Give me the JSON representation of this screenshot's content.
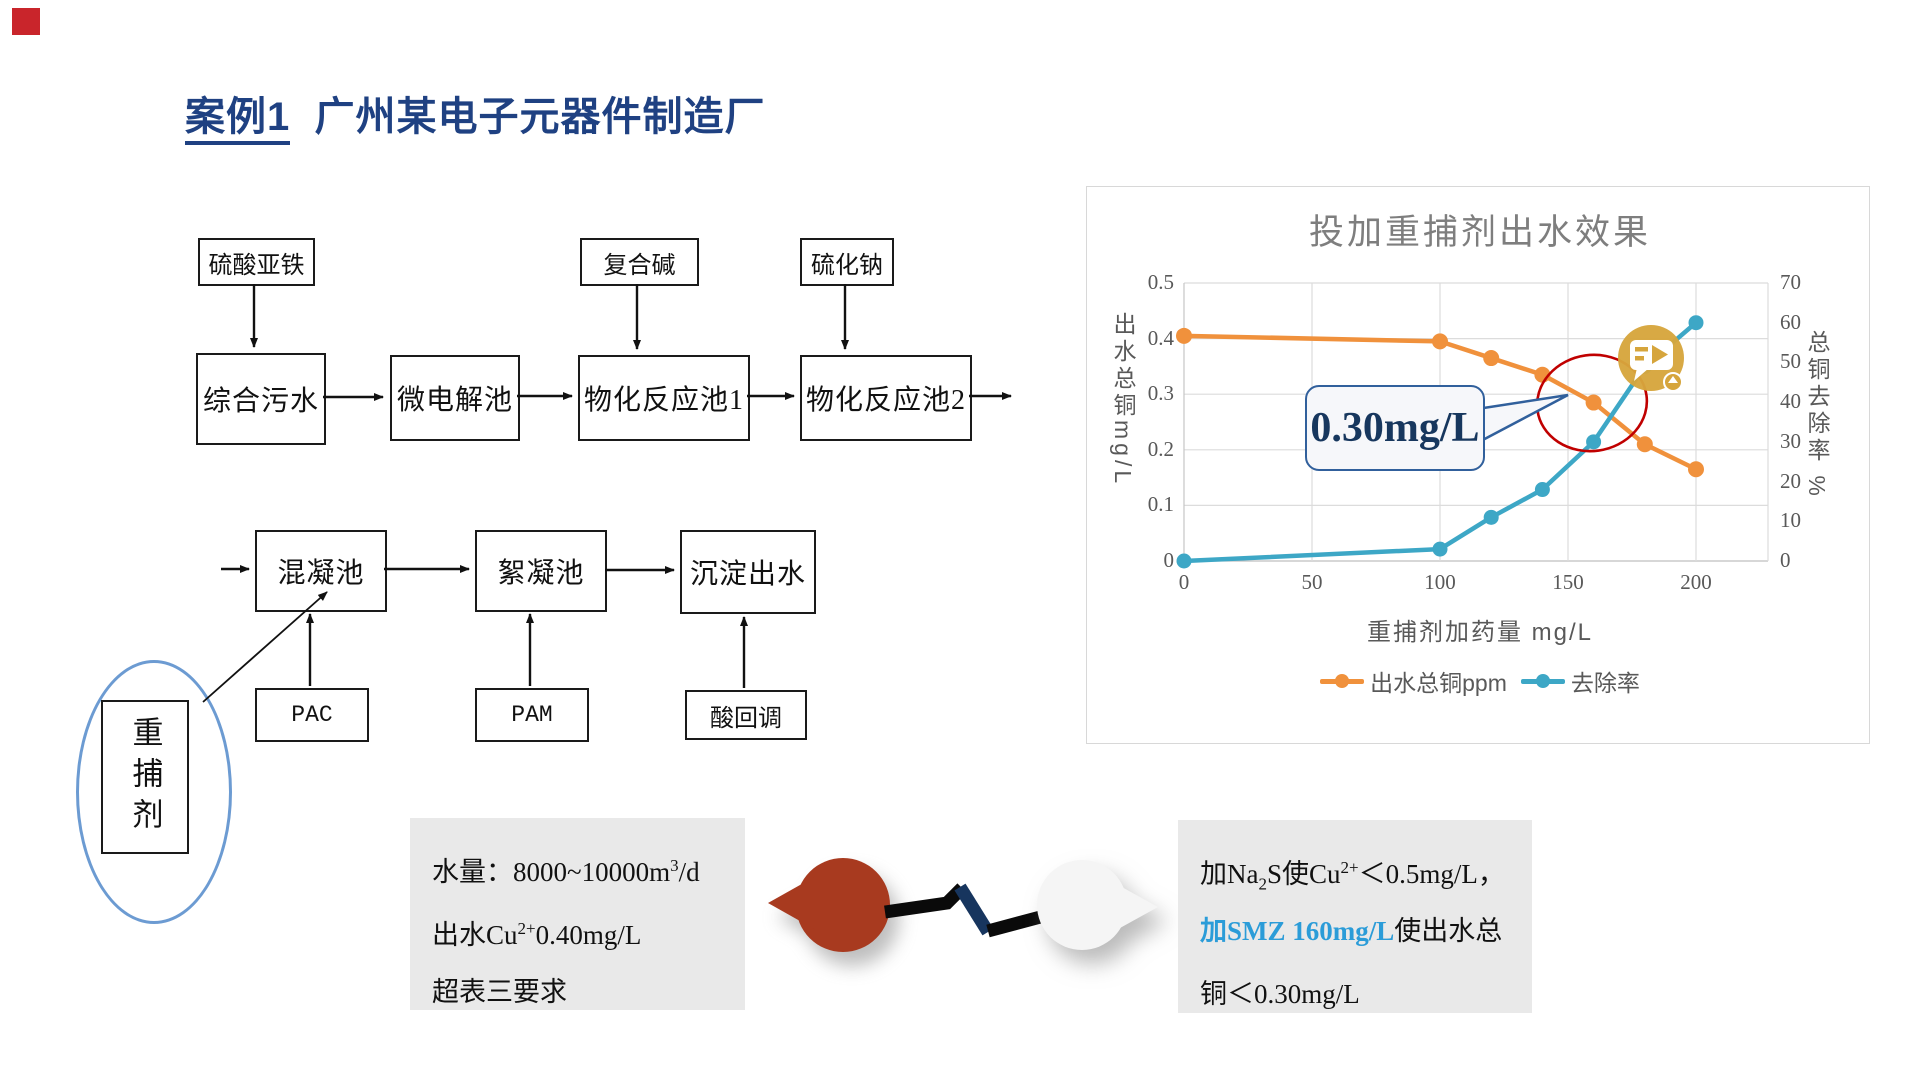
{
  "slide": {
    "title_underlined": "案例1",
    "title_rest": "广州某电子元器件制造厂"
  },
  "flow_top": {
    "reagents": [
      {
        "label": "硫酸亚铁"
      },
      {
        "label": "复合碱"
      },
      {
        "label": "硫化钠"
      }
    ],
    "tanks": [
      {
        "label": "综合污水"
      },
      {
        "label": "微电解池"
      },
      {
        "label": "物化反应池1"
      },
      {
        "label": "物化反应池2"
      }
    ]
  },
  "flow_bottom": {
    "tanks": [
      {
        "label": "混凝池"
      },
      {
        "label": "絮凝池"
      },
      {
        "label": "沉淀出水"
      }
    ],
    "reagents": [
      {
        "label": "PAC"
      },
      {
        "label": "PAM"
      },
      {
        "label": "酸回调"
      }
    ],
    "capture_agent_label": "重捕剂"
  },
  "chart_data": {
    "type": "line",
    "title": "投加重捕剂出水效果",
    "xlabel": "重捕剂加药量 mg/L",
    "ylabel_left": "出水总铜mg/L",
    "ylabel_right": "总铜去除率 %",
    "x": [
      0,
      100,
      120,
      140,
      160,
      180,
      200
    ],
    "series": [
      {
        "name": "出水总铜ppm",
        "axis": "left",
        "color": "#f0913c",
        "values": [
          0.405,
          0.395,
          0.365,
          0.335,
          0.285,
          0.21,
          0.165
        ]
      },
      {
        "name": "去除率",
        "axis": "right",
        "color": "#3da7c6",
        "values": [
          0,
          3,
          11,
          18,
          30,
          49,
          60
        ]
      }
    ],
    "xlim": [
      0,
      228
    ],
    "ylim_left": [
      0,
      0.5
    ],
    "ylim_right": [
      0,
      70
    ],
    "x_ticks": [
      0,
      50,
      100,
      150,
      200
    ],
    "left_ticks": [
      "0.5",
      "0.4",
      "0.3",
      "0.2",
      "0.1",
      "0"
    ],
    "right_ticks": [
      "70",
      "60",
      "50",
      "40",
      "30",
      "20",
      "10",
      "0"
    ],
    "grid": true,
    "legend_position": "bottom",
    "annotation": {
      "callout_text": "0.30mg/L"
    }
  },
  "notes_left": {
    "lines": [
      [
        {
          "t": "水量：8000~10000m"
        },
        {
          "t": "3",
          "sup": true
        },
        {
          "t": "/d"
        }
      ],
      [
        {
          "t": "出水Cu"
        },
        {
          "t": "2+",
          "sup": true
        },
        {
          "t": "0.40mg/L"
        }
      ],
      [
        {
          "t": "超表三要求"
        }
      ]
    ]
  },
  "notes_right": {
    "lines": [
      [
        {
          "t": "加Na"
        },
        {
          "t": "2",
          "sub": true
        },
        {
          "t": "S使Cu"
        },
        {
          "t": "2+",
          "sup": true
        },
        {
          "t": "＜0.5mg/L，"
        }
      ],
      [
        {
          "t": "加SMZ 160mg/L",
          "accent": true
        },
        {
          "t": "使出水总"
        }
      ],
      [
        {
          "t": "铜＜0.30mg/L"
        }
      ]
    ]
  },
  "colors": {
    "accent_blue": "#2b9cd8",
    "title_navy": "#1f4182",
    "callout_navy": "#17375e",
    "annotation_red": "#c00000",
    "gold_icon": "#d6a53c",
    "teardrop_red": "#a83a1f",
    "teardrop_white": "#f5f5f5",
    "note_bg": "#e9e9e9"
  }
}
